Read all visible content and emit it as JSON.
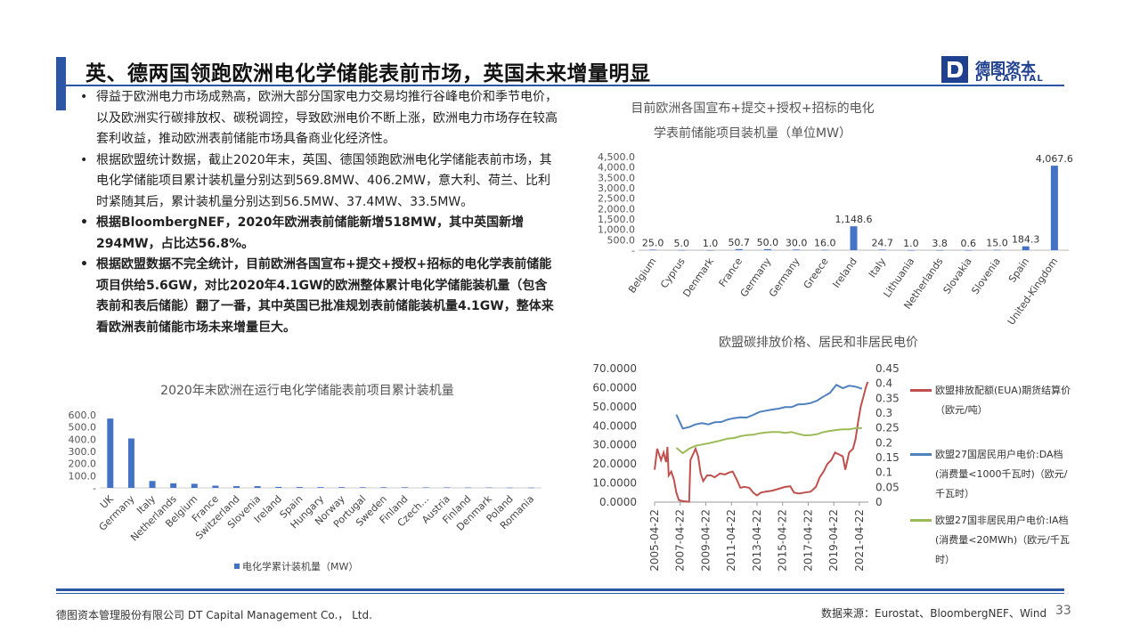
{
  "header": {
    "title": "英、德两国领跑欧洲电化学储能表前市场，英国未来增量明显"
  },
  "logo": {
    "cn": "德图资本",
    "en": "DT CAPITAL"
  },
  "bullets": [
    {
      "text": "得益于欧洲电力市场成熟高，欧洲大部分国家电力交易均推行谷峰电价和季节电价，以及欧洲实行碳排放权、碳税调控，导致欧洲电价不断上涨，欧洲电力市场存在较高套利收益，推动欧洲表前储能市场具备商业化经济性。",
      "bold": false
    },
    {
      "text": "根据欧盟统计数据，截止2020年末，英国、德国领跑欧洲电化学储能表前市场，其电化学储能项目累计装机量分别达到569.8MW、406.2MW，意大利、荷兰、比利时紧随其后，累计装机量分别达到56.5MW、37.4MW、33.5MW。",
      "bold": false
    },
    {
      "text": "根据BloombergNEF，2020年欧洲表前储能新增518MW，其中英国新增294MW，占比达56.8%。",
      "bold": true
    },
    {
      "text": "根据欧盟数据不完全统计，目前欧洲各国宣布+提交+授权+招标的电化学表前储能项目供给5.6GW，对比2020年4.1GW的欧洲整体累计电化学储能装机量（包含表前和表后储能）翻了一番，其中英国已批准规划表前储能装机量4.1GW，整体来看欧洲表前储能市场未来增量巨大。",
      "bold": true
    }
  ],
  "chart_data": [
    {
      "type": "bar",
      "title": "目前欧洲各国宣布+提交+授权+招标的电化学表前储能项目装机量（单位MW）",
      "categories": [
        "Belgium",
        "Cyprus",
        "Denmark",
        "France",
        "Germany",
        "Germany",
        "Greece",
        "Ireland",
        "Italy",
        "Lithuania",
        "Netherlands",
        "Slovakia",
        "Slovenia",
        "Spain",
        "United-Kingdom"
      ],
      "values": [
        25.0,
        5.0,
        1.0,
        50.7,
        50.0,
        30.0,
        16.0,
        1148.6,
        24.7,
        1.0,
        3.8,
        0.6,
        15.0,
        184.3,
        4067.6
      ],
      "value_labels": [
        "25.0",
        "5.0",
        "1.0",
        "50.7",
        "50.0",
        "30.0",
        "16.0",
        "1,148.6",
        "24.7",
        "1.0",
        "3.8",
        "0.6",
        "15.0",
        "184.3",
        "4,067.6"
      ],
      "yticks": [
        "-",
        "500.0",
        "1,000.0",
        "1,500.0",
        "2,000.0",
        "2,500.0",
        "3,000.0",
        "3,500.0",
        "4,000.0",
        "4,500.0"
      ],
      "ylim": [
        0,
        4500
      ],
      "color": "#4472c4"
    },
    {
      "type": "bar",
      "title": "2020年末欧洲在运行电化学储能表前项目累计装机量",
      "categories": [
        "UK",
        "Germany",
        "Italy",
        "Netherlands",
        "Belgium",
        "France",
        "Switzerland",
        "Slovenia",
        "Ireland",
        "Spain",
        "Hungary",
        "Norway",
        "Portugal",
        "Sweden",
        "Finland",
        "Czech…",
        "Austria",
        "Finland",
        "Denmark",
        "Poland",
        "Romania"
      ],
      "values": [
        569.8,
        406.2,
        56.5,
        37.4,
        33.5,
        18,
        14,
        14,
        8,
        7,
        6,
        6,
        5,
        5,
        5,
        4,
        4,
        3,
        3,
        2,
        2
      ],
      "yticks": [
        "-",
        "100.0",
        "200.0",
        "300.0",
        "400.0",
        "500.0",
        "600.0"
      ],
      "ylim": [
        0,
        600
      ],
      "legend": "电化学累计装机量（MW）",
      "color": "#4472c4"
    },
    {
      "type": "line",
      "title": "欧盟碳排放价格、居民和非居民电价",
      "x_ticks": [
        "2005-04-22",
        "2007-04-22",
        "2009-04-22",
        "2011-04-22",
        "2013-04-22",
        "2015-04-22",
        "2017-04-22",
        "2019-04-22",
        "2021-04-22"
      ],
      "y_left_ticks": [
        "0.0000",
        "10.0000",
        "20.0000",
        "30.0000",
        "40.0000",
        "50.0000",
        "60.0000",
        "70.0000"
      ],
      "y_left_lim": [
        0,
        70
      ],
      "y_right_ticks": [
        "0",
        "0.05",
        "0.1",
        "0.15",
        "0.2",
        "0.25",
        "0.3",
        "0.35",
        "0.4",
        "0.45"
      ],
      "y_right_lim": [
        0,
        0.45
      ],
      "series": [
        {
          "name": "欧盟排放配额(EUA)期货结算价（欧元/吨）",
          "axis": "left",
          "color": "#c0504d",
          "points": [
            [
              2005.3,
              17
            ],
            [
              2005.5,
              28
            ],
            [
              2005.8,
              22
            ],
            [
              2006.0,
              26
            ],
            [
              2006.2,
              21
            ],
            [
              2006.3,
              29
            ],
            [
              2006.4,
              14
            ],
            [
              2006.6,
              16
            ],
            [
              2006.8,
              12
            ],
            [
              2007.0,
              5
            ],
            [
              2007.2,
              1
            ],
            [
              2007.5,
              0.5
            ],
            [
              2007.8,
              0.3
            ],
            [
              2008.0,
              0.2
            ],
            [
              2008.1,
              22
            ],
            [
              2008.3,
              25
            ],
            [
              2008.5,
              28
            ],
            [
              2008.7,
              24
            ],
            [
              2008.9,
              15
            ],
            [
              2009.1,
              11
            ],
            [
              2009.4,
              14
            ],
            [
              2009.7,
              14
            ],
            [
              2010.0,
              13
            ],
            [
              2010.4,
              15
            ],
            [
              2010.8,
              14.5
            ],
            [
              2011.1,
              15.5
            ],
            [
              2011.4,
              16
            ],
            [
              2011.7,
              12
            ],
            [
              2012.0,
              7.5
            ],
            [
              2012.3,
              8
            ],
            [
              2012.7,
              7.5
            ],
            [
              2013.0,
              5
            ],
            [
              2013.3,
              3.5
            ],
            [
              2013.6,
              5
            ],
            [
              2014.0,
              5.5
            ],
            [
              2014.5,
              6
            ],
            [
              2015.0,
              7
            ],
            [
              2015.5,
              8
            ],
            [
              2015.9,
              8.3
            ],
            [
              2016.2,
              5
            ],
            [
              2016.6,
              4.5
            ],
            [
              2017.0,
              5
            ],
            [
              2017.5,
              5.5
            ],
            [
              2017.9,
              8
            ],
            [
              2018.2,
              13
            ],
            [
              2018.5,
              16
            ],
            [
              2018.8,
              20
            ],
            [
              2019.1,
              22
            ],
            [
              2019.4,
              26
            ],
            [
              2019.7,
              25
            ],
            [
              2020.0,
              24
            ],
            [
              2020.2,
              17
            ],
            [
              2020.5,
              26
            ],
            [
              2020.8,
              28
            ],
            [
              2021.0,
              33
            ],
            [
              2021.2,
              42
            ],
            [
              2021.4,
              50
            ],
            [
              2021.6,
              55
            ],
            [
              2021.8,
              60
            ],
            [
              2021.95,
              63
            ]
          ]
        },
        {
          "name": "欧盟27国居民用户电价:DA档(消费量<1000千瓦时)（欧元/千瓦时）",
          "axis": "right",
          "color": "#4f81bd",
          "points": [
            [
              2007.0,
              0.295
            ],
            [
              2007.5,
              0.248
            ],
            [
              2008.0,
              0.253
            ],
            [
              2008.5,
              0.262
            ],
            [
              2009.0,
              0.266
            ],
            [
              2009.5,
              0.262
            ],
            [
              2010.0,
              0.269
            ],
            [
              2010.5,
              0.27
            ],
            [
              2011.0,
              0.278
            ],
            [
              2011.5,
              0.283
            ],
            [
              2012.0,
              0.286
            ],
            [
              2012.5,
              0.285
            ],
            [
              2013.0,
              0.294
            ],
            [
              2013.5,
              0.304
            ],
            [
              2014.0,
              0.308
            ],
            [
              2014.5,
              0.312
            ],
            [
              2015.0,
              0.315
            ],
            [
              2015.5,
              0.32
            ],
            [
              2016.0,
              0.32
            ],
            [
              2016.5,
              0.329
            ],
            [
              2017.0,
              0.33
            ],
            [
              2017.5,
              0.334
            ],
            [
              2018.0,
              0.342
            ],
            [
              2018.5,
              0.356
            ],
            [
              2019.0,
              0.368
            ],
            [
              2019.5,
              0.395
            ],
            [
              2020.0,
              0.384
            ],
            [
              2020.5,
              0.392
            ],
            [
              2021.0,
              0.389
            ],
            [
              2021.5,
              0.382
            ]
          ]
        },
        {
          "name": "欧盟27国非居民用户电价:IA档(消费量<20MWh)（欧元/千瓦时）",
          "axis": "right",
          "color": "#9bbb59",
          "points": [
            [
              2007.0,
              0.183
            ],
            [
              2007.5,
              0.165
            ],
            [
              2008.0,
              0.18
            ],
            [
              2008.5,
              0.19
            ],
            [
              2009.0,
              0.194
            ],
            [
              2009.5,
              0.198
            ],
            [
              2010.0,
              0.203
            ],
            [
              2010.5,
              0.208
            ],
            [
              2011.0,
              0.214
            ],
            [
              2011.5,
              0.216
            ],
            [
              2012.0,
              0.222
            ],
            [
              2012.5,
              0.226
            ],
            [
              2013.0,
              0.227
            ],
            [
              2013.5,
              0.232
            ],
            [
              2014.0,
              0.235
            ],
            [
              2014.5,
              0.236
            ],
            [
              2015.0,
              0.236
            ],
            [
              2015.5,
              0.233
            ],
            [
              2016.0,
              0.236
            ],
            [
              2016.5,
              0.23
            ],
            [
              2017.0,
              0.225
            ],
            [
              2017.5,
              0.226
            ],
            [
              2018.0,
              0.229
            ],
            [
              2018.5,
              0.236
            ],
            [
              2019.0,
              0.24
            ],
            [
              2019.5,
              0.243
            ],
            [
              2020.0,
              0.245
            ],
            [
              2020.5,
              0.245
            ],
            [
              2021.0,
              0.249
            ],
            [
              2021.5,
              0.25
            ]
          ]
        }
      ]
    }
  ],
  "footer": {
    "company": "德图资本管理股份有限公司 DT Capital Management Co.， Ltd.",
    "source": "数据来源：Eurostat、BloombergNEF、Wind",
    "page": "33"
  }
}
